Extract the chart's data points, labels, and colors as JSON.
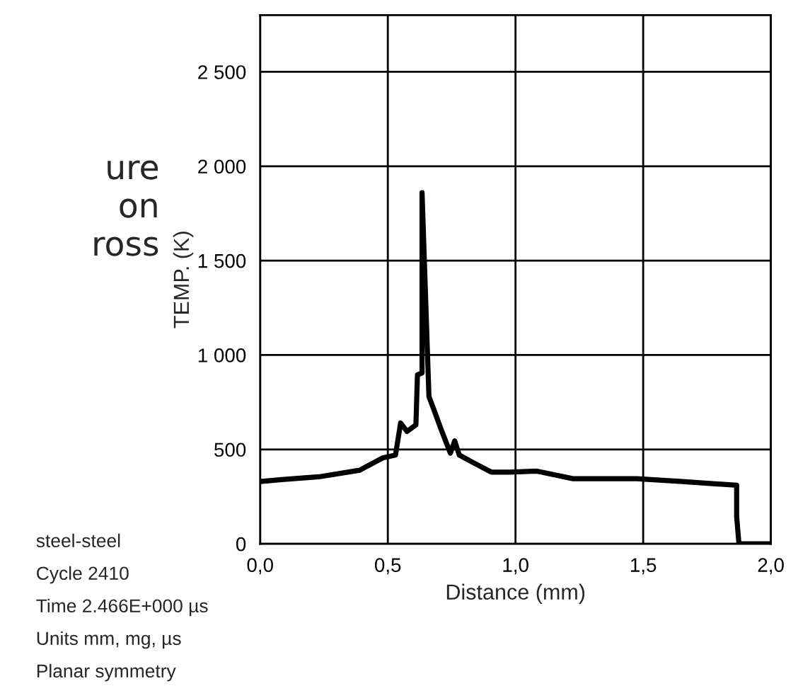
{
  "chart_data": {
    "type": "line",
    "xlabel": "Distance (mm)",
    "ylabel": "TEMP. (K)",
    "series": [
      {
        "color": "#000000",
        "x": [
          0,
          0.085,
          0.23,
          0.39,
          0.48,
          0.53,
          0.55,
          0.575,
          0.61,
          0.616,
          0.634,
          0.634,
          0.641,
          0.655,
          0.661,
          0.682,
          0.709,
          0.745,
          0.762,
          0.78,
          0.834,
          0.905,
          0.976,
          1.083,
          1.225,
          1.475,
          1.653,
          1.866,
          1.866,
          1.875,
          2.0
        ],
        "values": [
          330,
          340,
          355,
          390,
          455,
          470,
          640,
          595,
          630,
          895,
          905,
          1860,
          null,
          null,
          780,
          705,
          605,
          480,
          545,
          470,
          430,
          380,
          380,
          385,
          345,
          345,
          330,
          310,
          145,
          0,
          0
        ]
      }
    ],
    "xlim": [
      0,
      2.0
    ],
    "ylim": [
      0,
      2800
    ],
    "xticks": [
      {
        "value": 0,
        "label": "0,0"
      },
      {
        "value": 0.5,
        "label": "0,5"
      },
      {
        "value": 1.0,
        "label": "1,0"
      },
      {
        "value": 1.5,
        "label": "1,5"
      },
      {
        "value": 2.0,
        "label": "2,0"
      }
    ],
    "yticks": [
      0,
      500,
      {
        "value": 1000,
        "label": "1 000"
      },
      {
        "value": 1500,
        "label": "1 500"
      },
      {
        "value": 2000,
        "label": "2 000"
      },
      {
        "value": 2500,
        "label": "2 500"
      }
    ],
    "grid": true,
    "marker": "none",
    "line_style": "solid",
    "annotations": [
      "ure",
      "on",
      "ross",
      "steel-steel",
      "Cycle 2410",
      "Time 2.466E+000 µs",
      "Units mm, mg, µs",
      "Planar symmetry"
    ]
  }
}
